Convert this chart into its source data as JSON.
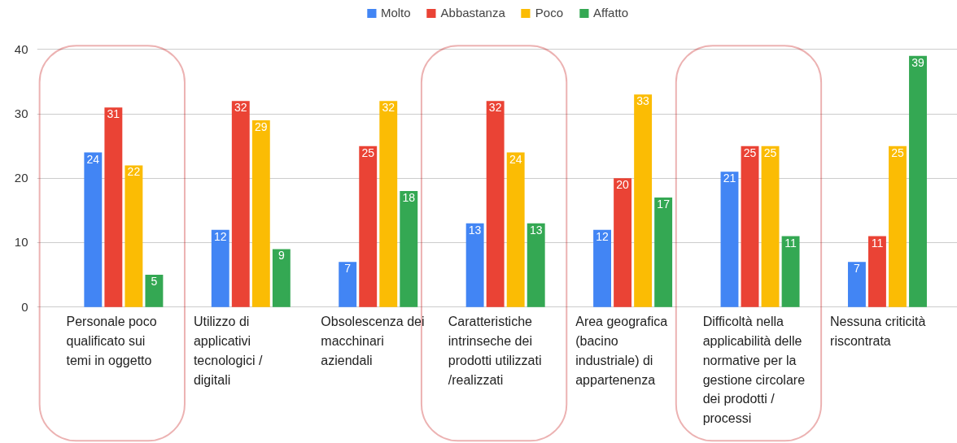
{
  "chart_data": {
    "type": "bar",
    "categories": [
      "Personale poco qualificato sui temi in oggetto",
      "Utilizzo di applicativi tecnologici / digitali",
      "Obsolescenza dei macchinari aziendali",
      "Caratteristiche intrinseche dei prodotti utilizzati/realizzati",
      "Area geografica (bacino industriale) di appartenenza",
      "Difficoltà nella applicabilità delle normative per la gestione circolare dei prodotti / processi",
      "Nessuna criticità riscontrata"
    ],
    "series": [
      {
        "name": "Molto",
        "color": "#4285f4",
        "values": [
          24,
          12,
          7,
          13,
          12,
          21,
          7
        ]
      },
      {
        "name": "Abbastanza",
        "color": "#ea4335",
        "values": [
          31,
          32,
          25,
          32,
          20,
          25,
          11
        ]
      },
      {
        "name": "Poco",
        "color": "#fbbc04",
        "values": [
          22,
          29,
          32,
          24,
          33,
          25,
          25
        ]
      },
      {
        "name": "Affatto",
        "color": "#34a853",
        "values": [
          5,
          9,
          18,
          13,
          17,
          11,
          39
        ]
      }
    ],
    "ylim": [
      0,
      40
    ],
    "yticks": [
      0,
      10,
      20,
      30,
      40
    ],
    "grid": "y",
    "legend": "top",
    "data_labels": true
  }
}
